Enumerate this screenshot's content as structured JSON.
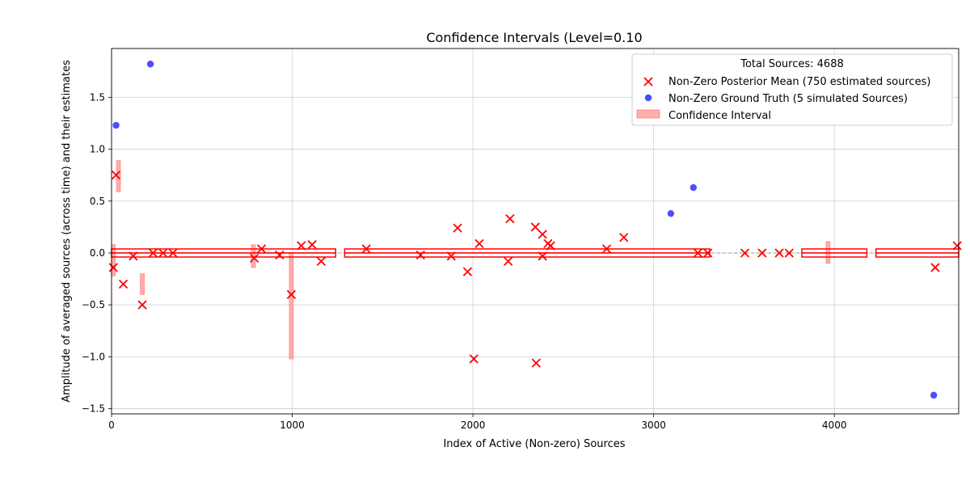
{
  "chart_data": {
    "type": "scatter",
    "title": "Confidence Intervals (Level=0.10",
    "xlabel": "Index of Active (Non-zero) Sources",
    "ylabel": "Amplitude of averaged sources (across time) and their estimates",
    "xlim": [
      0,
      4688
    ],
    "ylim": [
      -1.55,
      1.97
    ],
    "xticks": [
      0,
      1000,
      2000,
      3000,
      4000
    ],
    "xtick_labels": [
      "0",
      "1000",
      "2000",
      "3000",
      "4000"
    ],
    "yticks": [
      -1.5,
      -1.0,
      -0.5,
      0.0,
      0.5,
      1.0,
      1.5
    ],
    "ytick_labels": [
      "−1.5",
      "−1.0",
      "−0.5",
      "0.0",
      "0.5",
      "1.0",
      "1.5"
    ],
    "grid": true,
    "legend": {
      "title": "Total Sources: 4688",
      "placement": "top-right",
      "entries": [
        {
          "label": "Non-Zero Posterior Mean (750 estimated sources)",
          "marker": "x",
          "color": "#ff0000"
        },
        {
          "label": "Non-Zero Ground Truth (5 simulated Sources)",
          "marker": "circle",
          "color": "#0000ff"
        },
        {
          "label": "Confidence Interval",
          "marker": "rect",
          "color": "#ff9999"
        }
      ]
    },
    "zero_line": {
      "y": 0.0,
      "color": "#808080"
    },
    "series": [
      {
        "name": "Non-Zero Ground Truth (5 simulated Sources)",
        "marker": "circle",
        "color": "#0000ff",
        "points": [
          [
            25,
            1.23
          ],
          [
            215,
            1.82
          ],
          [
            3095,
            0.38
          ],
          [
            3220,
            0.63
          ],
          [
            4550,
            -1.37
          ]
        ]
      },
      {
        "name": "Non-Zero Posterior Mean (750 estimated sources)",
        "marker": "x",
        "color": "#ff0000",
        "points": [
          [
            25,
            0.75
          ],
          [
            10,
            -0.14
          ],
          [
            65,
            -0.3
          ],
          [
            170,
            -0.5
          ],
          [
            995,
            -0.4
          ],
          [
            2005,
            -1.02
          ],
          [
            2350,
            -1.06
          ],
          [
            1915,
            0.24
          ],
          [
            2205,
            0.33
          ],
          [
            2345,
            0.25
          ],
          [
            2385,
            0.18
          ],
          [
            2430,
            0.07
          ],
          [
            2835,
            0.15
          ],
          [
            4558,
            -0.14
          ],
          [
            4680,
            0.07
          ],
          [
            1970,
            -0.18
          ],
          [
            2035,
            0.09
          ],
          [
            2195,
            -0.08
          ],
          [
            1160,
            -0.08
          ],
          [
            1110,
            0.08
          ],
          [
            1050,
            0.07
          ],
          [
            1410,
            0.04
          ],
          [
            2740,
            0.04
          ],
          [
            120,
            -0.03
          ],
          [
            830,
            0.04
          ],
          [
            790,
            -0.05
          ],
          [
            1880,
            -0.03
          ],
          [
            2385,
            -0.03
          ],
          [
            1710,
            -0.02
          ],
          [
            930,
            -0.02
          ],
          [
            2415,
            0.09
          ],
          [
            3505,
            0.0
          ],
          [
            3600,
            0.0
          ],
          [
            3695,
            0.0
          ],
          [
            3750,
            0.0
          ],
          [
            3245,
            0.0
          ],
          [
            3300,
            0.0
          ],
          [
            230,
            0.0
          ],
          [
            285,
            0.0
          ],
          [
            340,
            0.0
          ]
        ],
        "dense_bands": [
          [
            0,
            1240
          ],
          [
            1290,
            3310
          ],
          [
            3820,
            4180
          ],
          [
            4230,
            4688
          ]
        ]
      },
      {
        "name": "Confidence Interval",
        "type": "interval",
        "color": "#ff9999",
        "intervals": [
          [
            10,
            -0.22,
            0.08
          ],
          [
            38,
            0.59,
            0.89
          ],
          [
            170,
            -0.4,
            -0.2
          ],
          [
            995,
            -1.02,
            0.0
          ],
          [
            785,
            -0.14,
            0.08
          ],
          [
            3965,
            -0.1,
            0.11
          ]
        ]
      }
    ]
  }
}
